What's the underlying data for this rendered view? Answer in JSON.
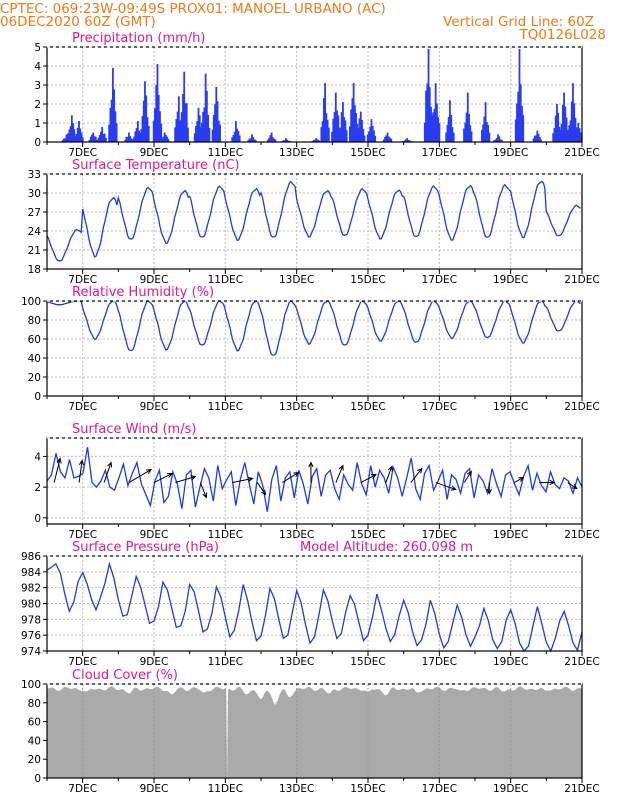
{
  "header": {
    "left_line1": "CPTEC:   069:23W-09:49S   PROX01: MANOEL URBANO (AC)",
    "left_line2": "06DEC2020 60Z (GMT)",
    "right_line2": "Vertical Grid Line: 60Z",
    "right_line3": "TQ0126L028",
    "color": "#f07818"
  },
  "colors": {
    "series": "#1e3cdc",
    "bars": "#2a3cf0",
    "cloud": "#aaaaaa",
    "title": "#e0188c",
    "axis": "#000000",
    "grid": "#bdbdbd"
  },
  "chart_data": [
    {
      "type": "bar",
      "id": "precip",
      "title": "Precipitation (mm/h)",
      "x_ticks": [
        "7DEC",
        "9DEC",
        "11DEC",
        "13DEC",
        "15DEC",
        "17DEC",
        "19DEC",
        "21DEC"
      ],
      "ylim": [
        0,
        5
      ],
      "y_ticks": [
        0,
        1,
        2,
        3,
        4,
        5
      ],
      "events": [
        {
          "day": 0.55,
          "v": 0.4
        },
        {
          "day": 0.7,
          "v": 1.4
        },
        {
          "day": 0.9,
          "v": 1.1
        },
        {
          "day": 1.3,
          "v": 0.5
        },
        {
          "day": 1.55,
          "v": 0.8
        },
        {
          "day": 1.85,
          "v": 3.9
        },
        {
          "day": 2.3,
          "v": 0.5
        },
        {
          "day": 2.55,
          "v": 1.1
        },
        {
          "day": 2.75,
          "v": 3.2
        },
        {
          "day": 3.1,
          "v": 4.1
        },
        {
          "day": 3.3,
          "v": 0.5
        },
        {
          "day": 3.7,
          "v": 2.4
        },
        {
          "day": 3.85,
          "v": 3.7
        },
        {
          "day": 4.25,
          "v": 1.8
        },
        {
          "day": 4.45,
          "v": 3.6
        },
        {
          "day": 4.75,
          "v": 2.9
        },
        {
          "day": 5.3,
          "v": 1.1
        },
        {
          "day": 5.75,
          "v": 0.4
        },
        {
          "day": 6.3,
          "v": 0.5
        },
        {
          "day": 6.7,
          "v": 0.2
        },
        {
          "day": 7.55,
          "v": 0.2
        },
        {
          "day": 7.8,
          "v": 3.1
        },
        {
          "day": 8.1,
          "v": 2.6
        },
        {
          "day": 8.3,
          "v": 2.1
        },
        {
          "day": 8.6,
          "v": 3.1
        },
        {
          "day": 8.8,
          "v": 1.6
        },
        {
          "day": 9.1,
          "v": 1.2
        },
        {
          "day": 9.55,
          "v": 0.5
        },
        {
          "day": 10.1,
          "v": 0.2
        },
        {
          "day": 10.7,
          "v": 4.9
        },
        {
          "day": 10.9,
          "v": 3.1
        },
        {
          "day": 11.3,
          "v": 2.2
        },
        {
          "day": 11.8,
          "v": 2.6
        },
        {
          "day": 12.3,
          "v": 2.1
        },
        {
          "day": 12.65,
          "v": 0.4
        },
        {
          "day": 13.25,
          "v": 4.9
        },
        {
          "day": 13.75,
          "v": 0.6
        },
        {
          "day": 14.3,
          "v": 2.0
        },
        {
          "day": 14.5,
          "v": 2.6
        },
        {
          "day": 14.75,
          "v": 3.1
        },
        {
          "day": 14.9,
          "v": 1.0
        }
      ]
    },
    {
      "type": "line",
      "id": "temp",
      "title": "Surface Temperature (nC)",
      "x_ticks": [
        "7DEC",
        "9DEC",
        "11DEC",
        "13DEC",
        "15DEC",
        "17DEC",
        "19DEC",
        "21DEC"
      ],
      "ylim": [
        18,
        33
      ],
      "y_ticks": [
        18,
        21,
        24,
        27,
        30,
        33
      ],
      "daily": [
        {
          "max": 24.2,
          "min": 19.2
        },
        {
          "max": 29.2,
          "min": 20.0
        },
        {
          "max": 30.8,
          "min": 22.6
        },
        {
          "max": 30.3,
          "min": 22.1
        },
        {
          "max": 31.0,
          "min": 22.9
        },
        {
          "max": 30.6,
          "min": 22.6
        },
        {
          "max": 31.7,
          "min": 22.9
        },
        {
          "max": 30.3,
          "min": 23.1
        },
        {
          "max": 30.6,
          "min": 23.2
        },
        {
          "max": 30.4,
          "min": 22.8
        },
        {
          "max": 31.0,
          "min": 23.0
        },
        {
          "max": 31.1,
          "min": 22.6
        },
        {
          "max": 31.2,
          "min": 22.9
        },
        {
          "max": 31.8,
          "min": 23.0
        },
        {
          "max": 28.0,
          "min": 23.2
        }
      ]
    },
    {
      "type": "line",
      "id": "rh",
      "title": "Relative Humidity (%)",
      "x_ticks": [
        "7DEC",
        "9DEC",
        "11DEC",
        "13DEC",
        "15DEC",
        "17DEC",
        "19DEC",
        "21DEC"
      ],
      "ylim": [
        0,
        100
      ],
      "y_ticks": [
        0,
        20,
        40,
        60,
        80,
        100
      ],
      "daily": [
        {
          "max": 100,
          "min": 96
        },
        {
          "max": 100,
          "min": 60
        },
        {
          "max": 100,
          "min": 47
        },
        {
          "max": 100,
          "min": 49
        },
        {
          "max": 100,
          "min": 53
        },
        {
          "max": 100,
          "min": 48
        },
        {
          "max": 100,
          "min": 42
        },
        {
          "max": 100,
          "min": 55
        },
        {
          "max": 100,
          "min": 53
        },
        {
          "max": 100,
          "min": 58
        },
        {
          "max": 100,
          "min": 56
        },
        {
          "max": 100,
          "min": 61
        },
        {
          "max": 100,
          "min": 61
        },
        {
          "max": 100,
          "min": 56
        },
        {
          "max": 100,
          "min": 68
        }
      ]
    },
    {
      "type": "line",
      "id": "wind",
      "title": "Surface Wind (m/s)",
      "x_ticks": [
        "7DEC",
        "9DEC",
        "11DEC",
        "13DEC",
        "15DEC",
        "17DEC",
        "19DEC",
        "21DEC"
      ],
      "ylim": [
        -0.4,
        5.2
      ],
      "y_ticks": [
        0,
        2,
        4
      ],
      "values": [
        2.4,
        2.8,
        4.2,
        3.0,
        2.6,
        3.8,
        2.6,
        2.7,
        2.9,
        4.6,
        2.3,
        2.0,
        2.4,
        3.1,
        2.0,
        1.8,
        2.6,
        3.5,
        2.1,
        2.9,
        3.6,
        2.2,
        1.5,
        0.8,
        2.4,
        3.1,
        1.0,
        1.4,
        3.0,
        2.2,
        0.6,
        2.8,
        3.1,
        0.7,
        2.0,
        3.2,
        2.6,
        1.1,
        3.4,
        1.9,
        2.5,
        3.0,
        0.8,
        2.5,
        3.6,
        2.2,
        0.9,
        3.0,
        2.1,
        0.4,
        2.5,
        3.4,
        1.1,
        2.6,
        3.0,
        1.3,
        3.1,
        2.2,
        0.9,
        2.7,
        3.2,
        1.4,
        2.8,
        3.1,
        1.9,
        1.2,
        2.8,
        2.2,
        1.8,
        3.6,
        2.2,
        1.5,
        3.4,
        2.0,
        3.1,
        2.6,
        1.6,
        3.3,
        2.6,
        1.4,
        2.6,
        3.9,
        1.9,
        1.2,
        2.9,
        3.4,
        1.8,
        2.4,
        3.1,
        1.2,
        2.8,
        2.5,
        1.6,
        2.9,
        3.2,
        1.3,
        2.8,
        2.4,
        1.6,
        3.2,
        2.2,
        1.4,
        2.8,
        3.0,
        2.2,
        1.5,
        2.7,
        3.4,
        1.8,
        2.9,
        2.1,
        1.7,
        3.0,
        2.2,
        1.9,
        2.6,
        2.4,
        1.6,
        2.6,
        2.0
      ],
      "arrows": [
        {
          "day": 0.2,
          "u": 0.6,
          "v": 2.4
        },
        {
          "day": 0.9,
          "u": 0.3,
          "v": 2.2
        },
        {
          "day": 1.6,
          "u": 0.7,
          "v": 2.0
        },
        {
          "day": 2.3,
          "u": 2.2,
          "v": 1.3
        },
        {
          "day": 3.0,
          "u": 1.8,
          "v": 0.9
        },
        {
          "day": 3.6,
          "u": 2.0,
          "v": 0.6
        },
        {
          "day": 4.3,
          "u": 0.6,
          "v": -1.5
        },
        {
          "day": 5.2,
          "u": 2.0,
          "v": 0.4
        },
        {
          "day": 5.9,
          "u": 0.8,
          "v": -1.2
        },
        {
          "day": 6.6,
          "u": 1.6,
          "v": 1.0
        },
        {
          "day": 7.4,
          "u": 0.0,
          "v": 2.0
        },
        {
          "day": 8.1,
          "u": 0.7,
          "v": 1.7
        },
        {
          "day": 8.8,
          "u": 1.5,
          "v": 0.8
        },
        {
          "day": 9.5,
          "u": 0.6,
          "v": 1.6
        },
        {
          "day": 10.2,
          "u": 1.1,
          "v": 1.4
        },
        {
          "day": 10.9,
          "u": 2.0,
          "v": -0.7
        },
        {
          "day": 11.7,
          "u": 0.7,
          "v": 1.1
        },
        {
          "day": 12.4,
          "u": 0.0,
          "v": -1.1
        },
        {
          "day": 13.1,
          "u": 0.9,
          "v": 0.5
        },
        {
          "day": 13.8,
          "u": 1.5,
          "v": 0.0
        },
        {
          "day": 14.6,
          "u": 0.9,
          "v": -0.6
        }
      ]
    },
    {
      "type": "line",
      "id": "pres",
      "title": "Surface Pressure (hPa)",
      "subtitle": "Model Altitude: 260.098 m",
      "x_ticks": [
        "7DEC",
        "9DEC",
        "11DEC",
        "13DEC",
        "15DEC",
        "17DEC",
        "19DEC",
        "21DEC"
      ],
      "ylim": [
        974,
        986
      ],
      "y_ticks": [
        974,
        976,
        978,
        980,
        982,
        984,
        986
      ],
      "values": [
        984.2,
        984.6,
        985.0,
        983.8,
        981.2,
        979.0,
        980.2,
        982.8,
        983.9,
        982.5,
        980.5,
        979.2,
        980.8,
        982.6,
        985.0,
        983.2,
        980.5,
        978.4,
        978.6,
        980.9,
        983.4,
        982.1,
        979.8,
        977.5,
        977.8,
        979.6,
        982.7,
        981.7,
        979.4,
        977.0,
        977.2,
        979.0,
        982.4,
        981.5,
        979.0,
        976.4,
        976.8,
        978.8,
        982.1,
        980.8,
        978.3,
        975.8,
        976.6,
        979.1,
        982.4,
        980.4,
        977.6,
        975.3,
        975.9,
        978.5,
        981.9,
        980.6,
        978.0,
        975.6,
        976.0,
        978.8,
        981.6,
        980.1,
        977.3,
        975.0,
        975.8,
        978.6,
        981.7,
        980.3,
        977.8,
        975.6,
        976.2,
        978.9,
        981.0,
        979.9,
        977.5,
        975.3,
        976.0,
        978.3,
        981.2,
        979.2,
        976.9,
        975.2,
        976.1,
        978.5,
        980.4,
        978.9,
        976.4,
        974.7,
        975.4,
        977.4,
        980.4,
        978.7,
        976.1,
        974.4,
        975.2,
        977.5,
        979.8,
        978.3,
        976.0,
        974.6,
        975.8,
        977.2,
        979.4,
        977.8,
        975.4,
        974.3,
        975.2,
        977.9,
        979.2,
        977.5,
        975.0,
        974.0,
        974.6,
        977.2,
        979.6,
        977.4,
        975.1,
        974.0,
        975.6,
        977.8,
        979.0,
        977.2,
        975.0,
        974.1,
        976.4
      ]
    },
    {
      "type": "area",
      "id": "cloud",
      "title": "Cloud Cover (%)",
      "x_ticks": [
        "7DEC",
        "9DEC",
        "11DEC",
        "13DEC",
        "15DEC",
        "17DEC",
        "19DEC",
        "21DEC"
      ],
      "ylim": [
        0,
        100
      ],
      "y_ticks": [
        0,
        20,
        40,
        60,
        80,
        100
      ],
      "base_percent": 95,
      "dips": [
        {
          "day": 1.1,
          "v": 92
        },
        {
          "day": 2.3,
          "v": 90
        },
        {
          "day": 3.5,
          "v": 89
        },
        {
          "day": 4.4,
          "v": 91
        },
        {
          "day": 5.05,
          "v": 0
        },
        {
          "day": 5.6,
          "v": 89
        },
        {
          "day": 6.0,
          "v": 84
        },
        {
          "day": 6.4,
          "v": 78
        },
        {
          "day": 6.8,
          "v": 86
        },
        {
          "day": 7.9,
          "v": 90
        },
        {
          "day": 9.0,
          "v": 92
        },
        {
          "day": 9.5,
          "v": 88
        },
        {
          "day": 10.4,
          "v": 91
        },
        {
          "day": 11.6,
          "v": 93
        },
        {
          "day": 12.8,
          "v": 92
        },
        {
          "day": 14.0,
          "v": 93
        }
      ]
    }
  ]
}
